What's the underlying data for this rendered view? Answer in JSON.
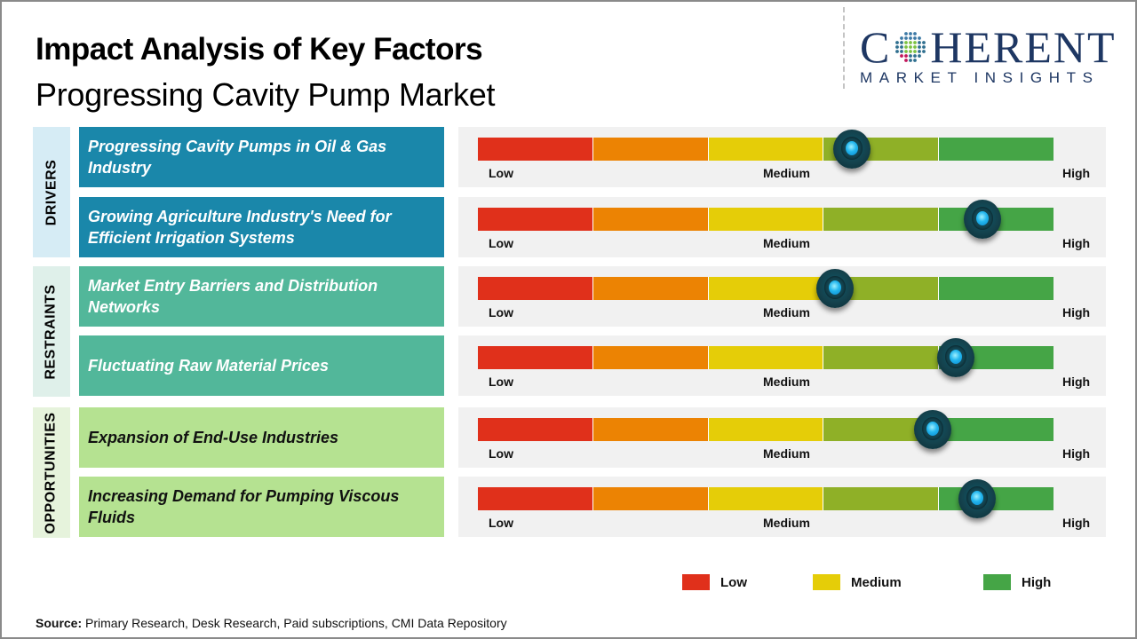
{
  "header": {
    "title": "Impact Analysis of Key Factors",
    "subtitle": "Progressing Cavity Pump Market"
  },
  "logo": {
    "brand_left": "C",
    "brand_right": "HERENT",
    "tagline": "MARKET INSIGHTS",
    "primary_color": "#1e3763"
  },
  "scale": {
    "segment_colors": [
      "#e0301b",
      "#ec8303",
      "#e5cd08",
      "#8fb027",
      "#45a546"
    ],
    "low_label": "Low",
    "medium_label": "Medium",
    "high_label": "High"
  },
  "categories": [
    {
      "name": "DRIVERS",
      "bg": "#d6ecf5",
      "factor_bg": "#1a87aa",
      "factor_text": "#ffffff"
    },
    {
      "name": "RESTRAINTS",
      "bg": "#dff0ea",
      "factor_bg": "#52b79a",
      "factor_text": "#ffffff"
    },
    {
      "name": "OPPORTUNITIES",
      "bg": "#e6f3dc",
      "factor_bg": "#b5e291",
      "factor_text": "#111111"
    }
  ],
  "chart_data": {
    "type": "gauge-table",
    "title": "Impact Analysis of Key Factors",
    "subtitle": "Progressing Cavity Pump Market",
    "scale_range": [
      0,
      1
    ],
    "scale_labels": [
      "Low",
      "Medium",
      "High"
    ],
    "factors": [
      {
        "category": "DRIVERS",
        "label": "Progressing  Cavity Pumps in Oil & Gas Industry",
        "impact": 0.65
      },
      {
        "category": "DRIVERS",
        "label": "Growing Agriculture Industry's Need for Efficient Irrigation Systems",
        "impact": 0.877
      },
      {
        "category": "RESTRAINTS",
        "label": "Market Entry Barriers and Distribution Networks",
        "impact": 0.62
      },
      {
        "category": "RESTRAINTS",
        "label": "Fluctuating Raw Material Prices",
        "impact": 0.83
      },
      {
        "category": "OPPORTUNITIES",
        "label": "Expansion of End-Use Industries",
        "impact": 0.79
      },
      {
        "category": "OPPORTUNITIES",
        "label": "Increasing Demand for Pumping Viscous Fluids",
        "impact": 0.867
      }
    ],
    "legend": [
      {
        "label": "Low",
        "color": "#e0301b"
      },
      {
        "label": "Medium",
        "color": "#e5cd08"
      },
      {
        "label": "High",
        "color": "#45a546"
      }
    ],
    "legend_position": "bottom-right"
  },
  "footer": {
    "source_label": "Source:",
    "source_text": " Primary Research, Desk Research, Paid subscriptions, CMI Data Repository"
  }
}
